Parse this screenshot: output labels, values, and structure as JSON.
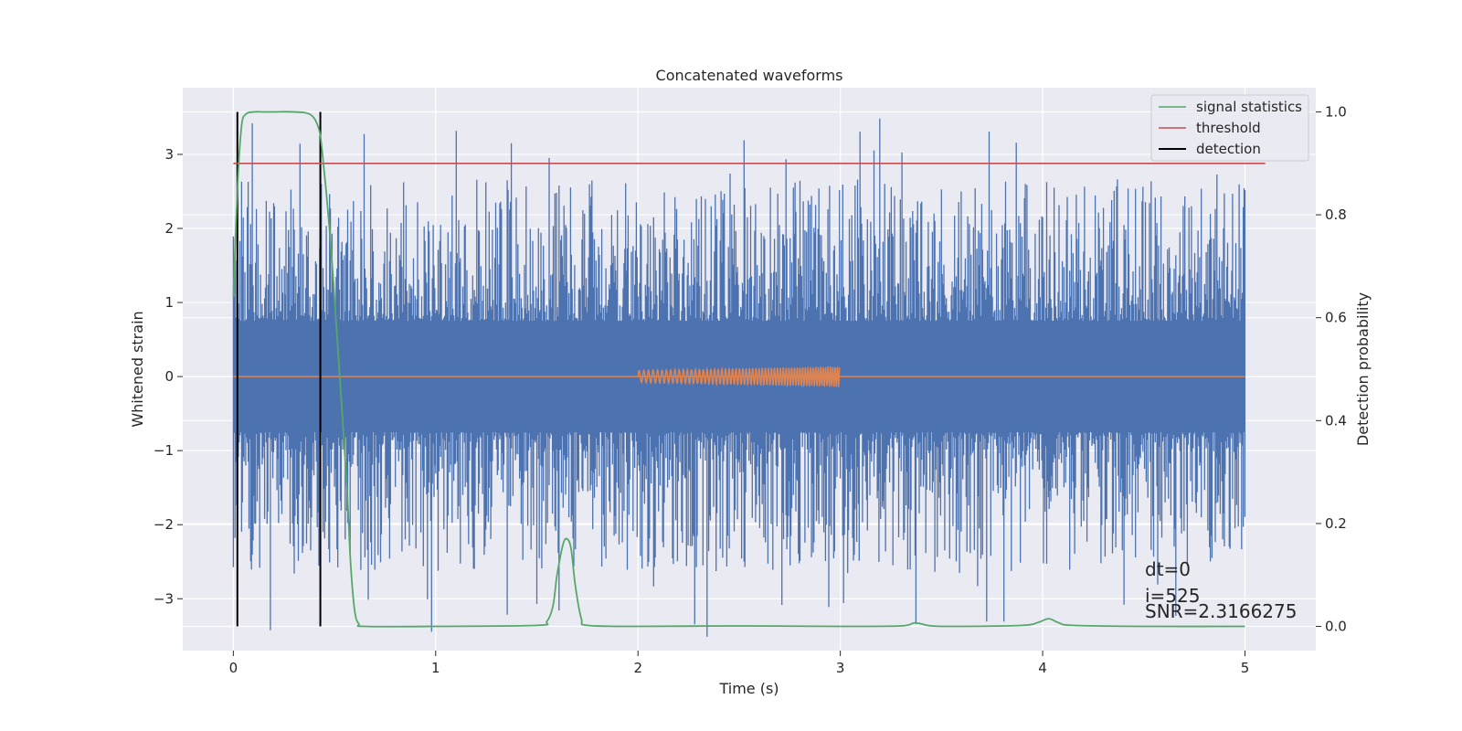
{
  "chart_data": {
    "type": "line",
    "title": "Concatenated waveforms",
    "xlabel": "Time (s)",
    "ylabel_left": "Whitened strain",
    "ylabel_right": "Detection probability",
    "xlim": [
      -0.25,
      5.35
    ],
    "ylim_left": [
      -3.7,
      3.9
    ],
    "ylim_right": [
      -0.047,
      1.047
    ],
    "x_ticks": [
      0,
      1,
      2,
      3,
      4,
      5
    ],
    "x_tick_labels": [
      "0",
      "1",
      "2",
      "3",
      "4",
      "5"
    ],
    "y_left_ticks": [
      -3,
      -2,
      -1,
      0,
      1,
      2,
      3
    ],
    "y_left_tick_labels": [
      "−3",
      "−2",
      "−1",
      "0",
      "1",
      "2",
      "3"
    ],
    "y_right_ticks": [
      0.0,
      0.2,
      0.4,
      0.6,
      0.8,
      1.0
    ],
    "y_right_tick_labels": [
      "0.0",
      "0.2",
      "0.4",
      "0.6",
      "0.8",
      "1.0"
    ],
    "grid": true,
    "legend_position": "top-right",
    "colors": {
      "noise": "#4c72b0",
      "injection": "#dd8452",
      "signal_statistics": "#55a868",
      "threshold": "#c44e52",
      "detection": "#000000",
      "background": "#eaeaf2"
    },
    "series": [
      {
        "name": "signal statistics",
        "axis": "right",
        "x": [
          0.0,
          0.02,
          0.04,
          0.06,
          0.1,
          0.15,
          0.2,
          0.3,
          0.38,
          0.42,
          0.44,
          0.48,
          0.52,
          0.56,
          0.58,
          0.6,
          0.62,
          0.65,
          1.0,
          1.5,
          1.55,
          1.58,
          1.6,
          1.63,
          1.65,
          1.67,
          1.69,
          1.72,
          1.75,
          2.0,
          2.5,
          3.0,
          3.3,
          3.37,
          3.45,
          3.6,
          3.9,
          3.98,
          4.03,
          4.08,
          4.15,
          4.5,
          5.0
        ],
        "y": [
          0.64,
          0.85,
          0.97,
          0.995,
          1.0,
          1.0,
          1.0,
          1.0,
          0.995,
          0.97,
          0.92,
          0.75,
          0.52,
          0.28,
          0.12,
          0.03,
          0.005,
          0.0,
          0.0,
          0.002,
          0.01,
          0.04,
          0.1,
          0.16,
          0.17,
          0.15,
          0.08,
          0.015,
          0.002,
          0.0,
          0.001,
          0.0,
          0.001,
          0.007,
          0.001,
          0.0,
          0.002,
          0.008,
          0.015,
          0.007,
          0.002,
          0.0,
          0.0
        ]
      },
      {
        "name": "threshold",
        "axis": "right",
        "x": [
          0.0,
          5.1
        ],
        "y": [
          0.9,
          0.9
        ]
      },
      {
        "name": "detection",
        "axis": "right",
        "x": [
          0.02,
          0.43
        ],
        "y_range": [
          0.0,
          1.0
        ]
      }
    ],
    "strain_noise": {
      "axis": "left",
      "x_range": [
        0.0,
        5.0
      ],
      "mean": 0.0,
      "band_abs": 0.75,
      "peak_abs_max": 3.5
    },
    "injection_waveform": {
      "axis": "left",
      "x_range": [
        2.0,
        3.0
      ],
      "amplitude_start": 0.08,
      "amplitude_end": 0.14,
      "baseline": 0.0
    },
    "annotations": [
      "dt=0",
      "i=525",
      "SNR=2.3166275"
    ]
  }
}
